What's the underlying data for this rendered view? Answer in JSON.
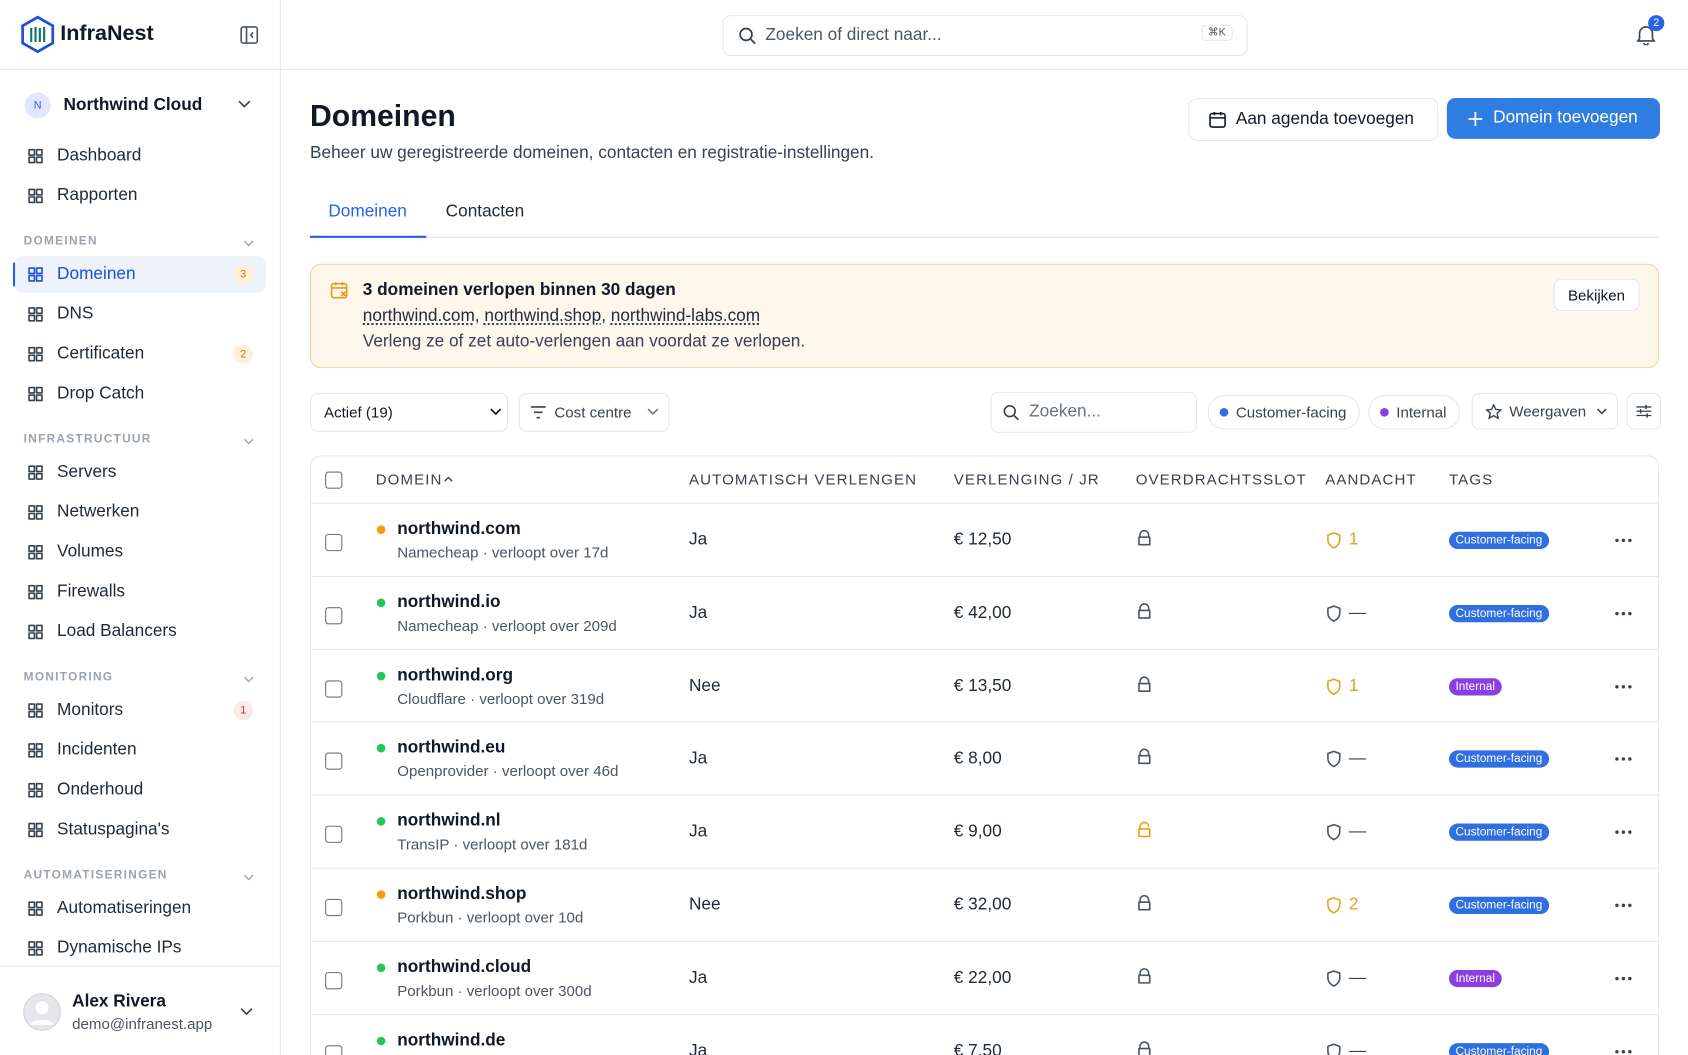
{
  "brand": "InfraNest",
  "search": {
    "placeholder": "Zoeken of direct naar...",
    "shortcut": "⌘K"
  },
  "notifications": 2,
  "workspace": {
    "initial": "N",
    "name": "Northwind Cloud"
  },
  "nav": [
    {
      "items": [
        {
          "label": "Dashboard"
        },
        {
          "label": "Rapporten"
        }
      ]
    },
    {
      "title": "DOMEINEN",
      "items": [
        {
          "label": "Domeinen",
          "badge": 3,
          "active": true
        },
        {
          "label": "DNS"
        },
        {
          "label": "Certificaten",
          "badge": 2
        },
        {
          "label": "Drop Catch"
        }
      ]
    },
    {
      "title": "INFRASTRUCTUUR",
      "items": [
        {
          "label": "Servers"
        },
        {
          "label": "Netwerken"
        },
        {
          "label": "Volumes"
        },
        {
          "label": "Firewalls"
        },
        {
          "label": "Load Balancers"
        }
      ]
    },
    {
      "title": "MONITORING",
      "items": [
        {
          "label": "Monitors",
          "badge": 1,
          "alert": true
        },
        {
          "label": "Incidenten"
        },
        {
          "label": "Onderhoud"
        },
        {
          "label": "Statuspagina's"
        }
      ]
    },
    {
      "title": "AUTOMATISERINGEN",
      "items": [
        {
          "label": "Automatiseringen"
        },
        {
          "label": "Dynamische IPs"
        }
      ]
    }
  ],
  "user": {
    "name": "Alex Rivera",
    "email": "demo@infranest.app"
  },
  "page": {
    "title": "Domeinen",
    "subtitle": "Beheer uw geregistreerde domeinen, contacten en registratie-instellingen.",
    "secondary_action": "Aan agenda toevoegen",
    "primary_action": "Domein toevoegen"
  },
  "tabs": [
    "Domeinen",
    "Contacten"
  ],
  "alert": {
    "title": "3 domeinen verlopen binnen 30 dagen",
    "links": [
      "northwind.com",
      "northwind.shop",
      "northwind-labs.com"
    ],
    "separator": ", ",
    "text": "Verleng ze of zet auto-verlengen aan voordat ze verlopen.",
    "button": "Bekijken"
  },
  "filters": {
    "status": "Actief (19)",
    "cost": "Cost centre",
    "search": "Zoeken...",
    "tags": [
      "Customer-facing",
      "Internal"
    ],
    "views": "Weergaven"
  },
  "table": {
    "columns": [
      "DOMEIN",
      "AUTOMATISCH VERLENGEN",
      "VERLENGING / JR",
      "OVERDRACHTSSLOT",
      "AANDACHT",
      "TAGS"
    ],
    "rows": [
      {
        "domain": "northwind.com",
        "status": "warning",
        "meta": "Namecheap · verloopt over 17d",
        "auto": "Ja",
        "price": "€ 12,50",
        "lock": "locked",
        "attention": 1,
        "tag": "Customer-facing"
      },
      {
        "domain": "northwind.io",
        "status": "ok",
        "meta": "Namecheap · verloopt over 209d",
        "auto": "Ja",
        "price": "€ 42,00",
        "lock": "locked",
        "attention": "—",
        "tag": "Customer-facing"
      },
      {
        "domain": "northwind.org",
        "status": "ok",
        "meta": "Cloudflare · verloopt over 319d",
        "auto": "Nee",
        "price": "€ 13,50",
        "lock": "locked",
        "attention": 1,
        "tag": "Internal"
      },
      {
        "domain": "northwind.eu",
        "status": "ok",
        "meta": "Openprovider · verloopt over 46d",
        "auto": "Ja",
        "price": "€ 8,00",
        "lock": "locked",
        "attention": "—",
        "tag": "Customer-facing"
      },
      {
        "domain": "northwind.nl",
        "status": "ok",
        "meta": "TransIP · verloopt over 181d",
        "auto": "Ja",
        "price": "€ 9,00",
        "lock": "unlocked",
        "attention": "—",
        "tag": "Customer-facing"
      },
      {
        "domain": "northwind.shop",
        "status": "warning",
        "meta": "Porkbun · verloopt over 10d",
        "auto": "Nee",
        "price": "€ 32,00",
        "lock": "locked",
        "attention": 2,
        "tag": "Customer-facing"
      },
      {
        "domain": "northwind.cloud",
        "status": "ok",
        "meta": "Porkbun · verloopt over 300d",
        "auto": "Ja",
        "price": "€ 22,00",
        "lock": "locked",
        "attention": "—",
        "tag": "Internal"
      },
      {
        "domain": "northwind.de",
        "status": "ok",
        "auto": "Ja",
        "price": "€ 7,50",
        "lock": "locked",
        "attention": "—",
        "tag": "Customer-facing"
      }
    ]
  }
}
